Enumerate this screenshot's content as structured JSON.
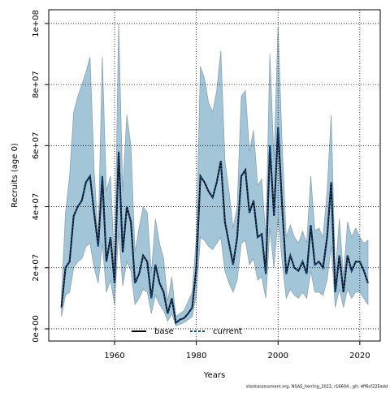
{
  "chart_data": {
    "type": "line",
    "xlabel": "Years",
    "ylabel": "Recruits (age 0)",
    "footer": "stockassessment.org, NSAS_herring_2022, r16604 , git: 4ff6cf225add",
    "x": [
      1947,
      1948,
      1949,
      1950,
      1951,
      1952,
      1953,
      1954,
      1955,
      1956,
      1957,
      1958,
      1959,
      1960,
      1961,
      1962,
      1963,
      1964,
      1965,
      1966,
      1967,
      1968,
      1969,
      1970,
      1971,
      1972,
      1973,
      1974,
      1975,
      1976,
      1977,
      1978,
      1979,
      1980,
      1981,
      1982,
      1983,
      1984,
      1985,
      1986,
      1987,
      1988,
      1989,
      1990,
      1991,
      1992,
      1993,
      1994,
      1995,
      1996,
      1997,
      1998,
      1999,
      2000,
      2001,
      2002,
      2003,
      2004,
      2005,
      2006,
      2007,
      2008,
      2009,
      2010,
      2011,
      2012,
      2013,
      2014,
      2015,
      2016,
      2017,
      2018,
      2019,
      2020,
      2021,
      2022
    ],
    "band": {
      "color": "#a3c5d8",
      "edge": "#8aa3b3",
      "upper": [
        10000000.0,
        38000000.0,
        50000000.0,
        71000000.0,
        76000000.0,
        80000000.0,
        84000000.0,
        89000000.0,
        52000000.0,
        30000000.0,
        89000000.0,
        45000000.0,
        50000000.0,
        20000000.0,
        100000000.0,
        45000000.0,
        70000000.0,
        60000000.0,
        25000000.0,
        33000000.0,
        40000000.0,
        38000000.0,
        18000000.0,
        36000000.0,
        28000000.0,
        23000000.0,
        9000000.0,
        17000000.0,
        4000000.0,
        5000000.0,
        6000000.0,
        9000000.0,
        12000000.0,
        30000000.0,
        86000000.0,
        82000000.0,
        74000000.0,
        71000000.0,
        78000000.0,
        91000000.0,
        55000000.0,
        45000000.0,
        33000000.0,
        40000000.0,
        76000000.0,
        78000000.0,
        58000000.0,
        65000000.0,
        47000000.0,
        49000000.0,
        30000000.0,
        90000000.0,
        55000000.0,
        99000000.0,
        60000000.0,
        30000000.0,
        34000000.0,
        30000000.0,
        28000000.0,
        32000000.0,
        28000000.0,
        50000000.0,
        32000000.0,
        33000000.0,
        30000000.0,
        45000000.0,
        70000000.0,
        18000000.0,
        36000000.0,
        17000000.0,
        35000000.0,
        30000000.0,
        33000000.0,
        30000000.0,
        28000000.0,
        29000000.0
      ],
      "lower": [
        4000000.0,
        11000000.0,
        12000000.0,
        20000000.0,
        22000000.0,
        23000000.0,
        27000000.0,
        28000000.0,
        20000000.0,
        15000000.0,
        28000000.0,
        12000000.0,
        16000000.0,
        8000000.0,
        32000000.0,
        14000000.0,
        22000000.0,
        19000000.0,
        8000000.0,
        10000000.0,
        13000000.0,
        12000000.0,
        5000000.0,
        11000000.0,
        8000000.0,
        6000000.0,
        2500000.0,
        5000000.0,
        1000000.0,
        1500000.0,
        2000000.0,
        3000000.0,
        4000000.0,
        11000000.0,
        30000000.0,
        29000000.0,
        27000000.0,
        26000000.0,
        28000000.0,
        30000000.0,
        19000000.0,
        15000000.0,
        12000000.0,
        16000000.0,
        28000000.0,
        29000000.0,
        21000000.0,
        23000000.0,
        16000000.0,
        17000000.0,
        10000000.0,
        33000000.0,
        20000000.0,
        36000000.0,
        22000000.0,
        10000000.0,
        13000000.0,
        11000000.0,
        10000000.0,
        12000000.0,
        10000000.0,
        19000000.0,
        12000000.0,
        12000000.0,
        11000000.0,
        16000000.0,
        27000000.0,
        7000000.0,
        13000000.0,
        7000000.0,
        13000000.0,
        10000000.0,
        12000000.0,
        12000000.0,
        10000000.0,
        8000000.0
      ]
    },
    "series": [
      {
        "name": "base",
        "color": "#000000",
        "dash": false,
        "values": [
          7000000.0,
          20000000.0,
          22000000.0,
          37000000.0,
          40000000.0,
          42000000.0,
          48000000.0,
          50000000.0,
          38000000.0,
          27000000.0,
          50000000.0,
          22000000.0,
          30000000.0,
          15000000.0,
          58000000.0,
          25000000.0,
          40000000.0,
          35000000.0,
          15000000.0,
          18000000.0,
          24000000.0,
          22000000.0,
          10000000.0,
          21000000.0,
          15000000.0,
          12000000.0,
          5000000.0,
          10000000.0,
          2000000.0,
          3000000.0,
          3500000.0,
          5000000.0,
          7000000.0,
          20000000.0,
          50000000.0,
          48000000.0,
          45000000.0,
          43000000.0,
          48000000.0,
          55000000.0,
          35000000.0,
          28000000.0,
          21000000.0,
          30000000.0,
          50000000.0,
          52000000.0,
          38000000.0,
          42000000.0,
          30000000.0,
          31000000.0,
          18000000.0,
          60000000.0,
          37000000.0,
          66000000.0,
          40000000.0,
          18000000.0,
          24000000.0,
          20000000.0,
          19000000.0,
          22000000.0,
          18000000.0,
          34000000.0,
          21000000.0,
          22000000.0,
          20000000.0,
          30000000.0,
          48000000.0,
          12000000.0,
          24000000.0,
          12000000.0,
          24000000.0,
          19000000.0,
          22000000.0,
          22000000.0,
          19000000.0,
          15000000.0
        ]
      },
      {
        "name": "current",
        "color": "#0b4f8a",
        "dash": true,
        "values": [
          7000000.0,
          20000000.0,
          22000000.0,
          37000000.0,
          40000000.0,
          42000000.0,
          48000000.0,
          50000000.0,
          38000000.0,
          27000000.0,
          50000000.0,
          22000000.0,
          30000000.0,
          15000000.0,
          58000000.0,
          25000000.0,
          40000000.0,
          35000000.0,
          15000000.0,
          18000000.0,
          24000000.0,
          22000000.0,
          10000000.0,
          21000000.0,
          15000000.0,
          12000000.0,
          5000000.0,
          10000000.0,
          2000000.0,
          3000000.0,
          3500000.0,
          5000000.0,
          7000000.0,
          20000000.0,
          50000000.0,
          48000000.0,
          45000000.0,
          43000000.0,
          48000000.0,
          55000000.0,
          35000000.0,
          28000000.0,
          21000000.0,
          30000000.0,
          50000000.0,
          52000000.0,
          38000000.0,
          42000000.0,
          30000000.0,
          31000000.0,
          18000000.0,
          60000000.0,
          37000000.0,
          66000000.0,
          40000000.0,
          18000000.0,
          24000000.0,
          20000000.0,
          19000000.0,
          22000000.0,
          18000000.0,
          34000000.0,
          21000000.0,
          22000000.0,
          20000000.0,
          30000000.0,
          48000000.0,
          12000000.0,
          24000000.0,
          12000000.0,
          24000000.0,
          19000000.0,
          22000000.0,
          22000000.0,
          19000000.0,
          15000000.0
        ]
      }
    ],
    "xlim": [
      1943.9,
      2025
    ],
    "xticks": [
      1960,
      1980,
      2000,
      2020
    ],
    "ylim": [
      -4000000.0,
      104500000.0
    ],
    "yticks": [
      {
        "value": 0,
        "label": "0e+00"
      },
      {
        "value": 20000000,
        "label": "2e+07"
      },
      {
        "value": 40000000,
        "label": "4e+07"
      },
      {
        "value": 60000000,
        "label": "6e+07"
      },
      {
        "value": 80000000,
        "label": "8e+07"
      },
      {
        "value": 100000000,
        "label": "1e+08"
      }
    ],
    "grid": true,
    "legend": "bottom"
  }
}
